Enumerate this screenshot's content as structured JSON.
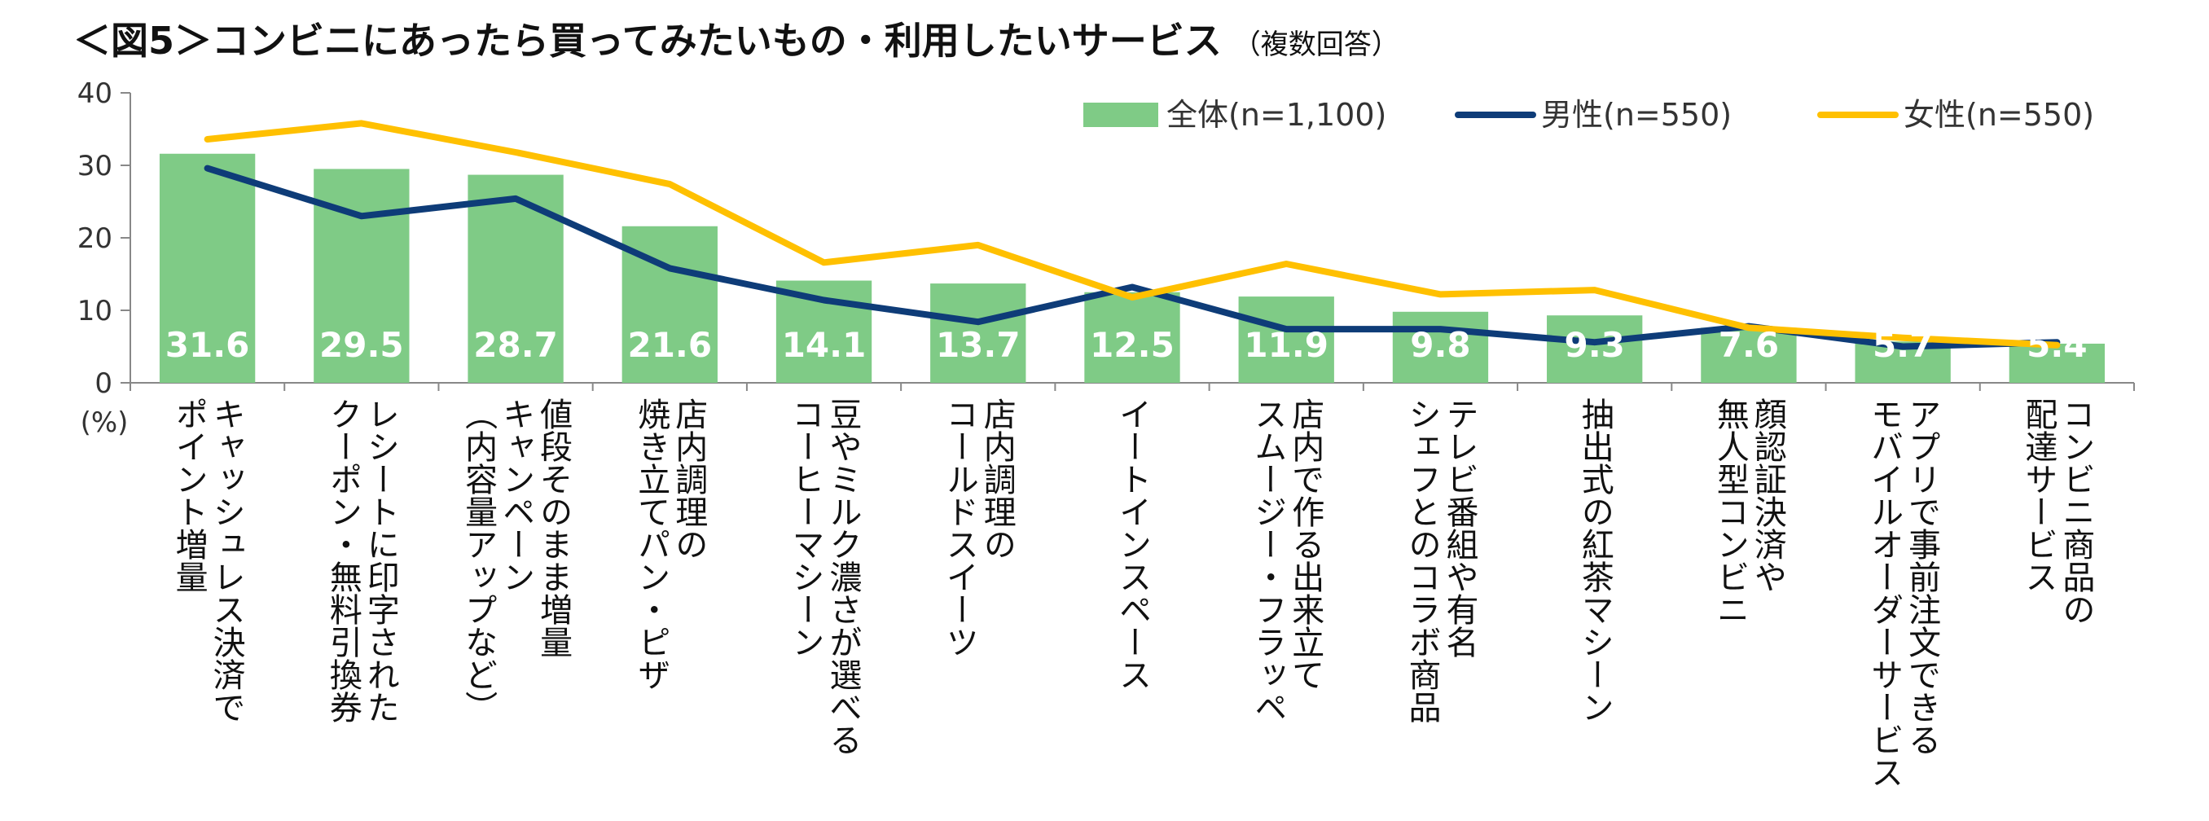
{
  "chart_data": {
    "type": "bar",
    "title": "＜図5＞コンビニにあったら買ってみたいもの・利用したいサービス",
    "subtitle": "（複数回答）",
    "ylabel": "(%)",
    "ylim": [
      0,
      40
    ],
    "yticks": [
      0,
      10,
      20,
      30,
      40
    ],
    "legend_position": "top-right",
    "categories": [
      [
        "キャッシュレス決済で",
        "ポイント増量"
      ],
      [
        "レシートに印字された",
        "クーポン・無料引換券"
      ],
      [
        "値段そのまま増量",
        "キャンペーン",
        "（内容量アップなど）"
      ],
      [
        "店内調理の",
        "焼き立てパン・ピザ"
      ],
      [
        "豆やミルク濃さが選べる",
        "コーヒーマシーン"
      ],
      [
        "店内調理の",
        "コールドスイーツ"
      ],
      [
        "イートインスペース"
      ],
      [
        "店内で作る出来立て",
        "スムージー・フラッペ"
      ],
      [
        "テレビ番組や有名",
        "シェフとのコラボ商品"
      ],
      [
        "抽出式の紅茶マシーン"
      ],
      [
        "顔認証決済や",
        "無人型コンビニ"
      ],
      [
        "アプリで事前注文できる",
        "モバイルオーダーサービス"
      ],
      [
        "コンビニ商品の",
        "配達サービス"
      ]
    ],
    "series": [
      {
        "name": "全体(n=1,100)",
        "kind": "bar",
        "color": "#7fcb86",
        "values": [
          31.6,
          29.5,
          28.7,
          21.6,
          14.1,
          13.7,
          12.5,
          11.9,
          9.8,
          9.3,
          7.6,
          5.7,
          5.4
        ]
      },
      {
        "name": "男性(n=550)",
        "kind": "line",
        "color": "#0e3c78",
        "values": [
          29.6,
          23.0,
          25.4,
          15.8,
          11.4,
          8.4,
          13.2,
          7.4,
          7.4,
          5.6,
          7.8,
          5.0,
          5.6
        ]
      },
      {
        "name": "女性(n=550)",
        "kind": "line",
        "color": "#ffc000",
        "values": [
          33.6,
          35.8,
          31.8,
          27.4,
          16.6,
          19.0,
          11.8,
          16.4,
          12.2,
          12.8,
          7.6,
          6.2,
          5.2
        ]
      }
    ]
  }
}
